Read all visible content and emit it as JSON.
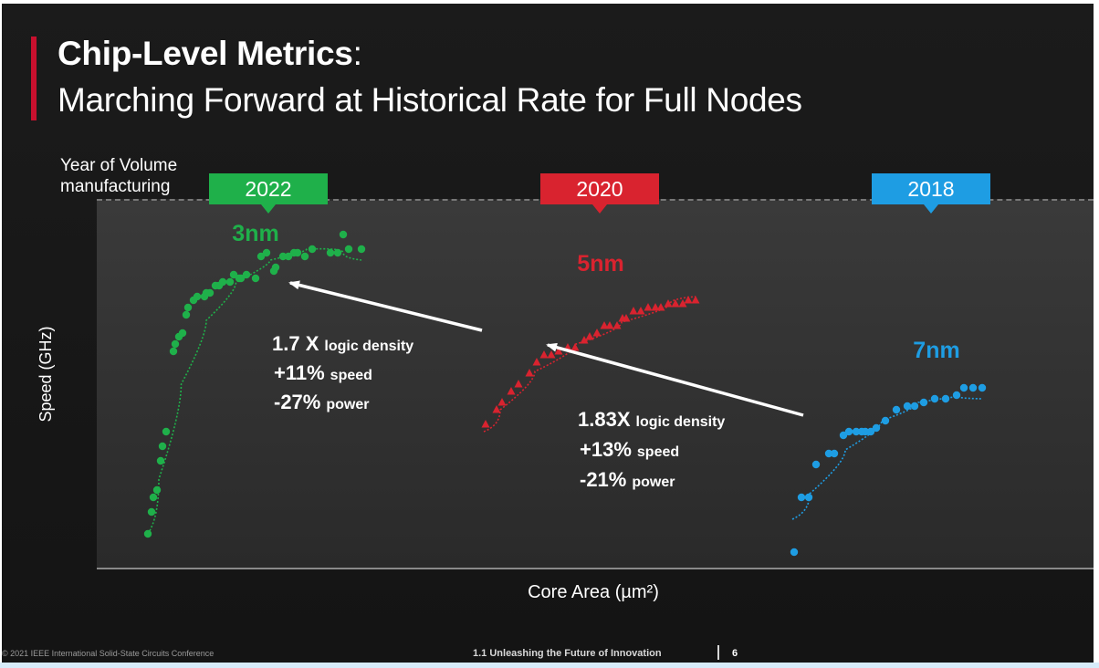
{
  "slide": {
    "title_bold": "Chip-Level Metrics",
    "title_suffix": ":",
    "title_line2": "Marching Forward at Historical Rate for Full Nodes",
    "year_label": "Year of Volume manufacturing",
    "footer_left": "© 2021 IEEE International Solid-State Circuits Conference",
    "footer_center": "1.1 Unleashing the Future of Innovation",
    "footer_page": "6"
  },
  "chart_data": {
    "type": "scatter",
    "title": "",
    "xlabel": "Core Area (µm²)",
    "ylabel": "Speed (GHz)",
    "x_range": [
      0,
      100
    ],
    "y_range": [
      0,
      100
    ],
    "axis_ticks": "none",
    "grid": false,
    "series": [
      {
        "name": "3nm",
        "year": "2022",
        "color": "#1fb04a",
        "marker": "circle",
        "points": [
          [
            0.6,
            10
          ],
          [
            1.0,
            16
          ],
          [
            1.2,
            20
          ],
          [
            1.6,
            22
          ],
          [
            2.0,
            30
          ],
          [
            2.2,
            34
          ],
          [
            2.6,
            38
          ],
          [
            3.4,
            60
          ],
          [
            3.6,
            62
          ],
          [
            4.0,
            64
          ],
          [
            4.4,
            65
          ],
          [
            4.8,
            70
          ],
          [
            5.0,
            72
          ],
          [
            5.6,
            74
          ],
          [
            6.0,
            75
          ],
          [
            6.8,
            75
          ],
          [
            7.0,
            76
          ],
          [
            7.4,
            76
          ],
          [
            8.0,
            78
          ],
          [
            8.4,
            78
          ],
          [
            8.8,
            79
          ],
          [
            9.6,
            79
          ],
          [
            10.0,
            81
          ],
          [
            10.6,
            80
          ],
          [
            10.8,
            80
          ],
          [
            11.4,
            81
          ],
          [
            12.4,
            80
          ],
          [
            13.0,
            86
          ],
          [
            13.6,
            87
          ],
          [
            14.4,
            82
          ],
          [
            14.6,
            83
          ],
          [
            15.4,
            86
          ],
          [
            16.0,
            86
          ],
          [
            16.6,
            87
          ],
          [
            17.0,
            87
          ],
          [
            17.8,
            86
          ],
          [
            18.6,
            88
          ],
          [
            20.6,
            87
          ],
          [
            21.4,
            87
          ],
          [
            22.0,
            92
          ],
          [
            22.6,
            88
          ],
          [
            24.0,
            88
          ]
        ],
        "trend": [
          [
            0.6,
            10
          ],
          [
            3,
            40
          ],
          [
            5.5,
            62
          ],
          [
            8.5,
            75
          ],
          [
            12,
            83
          ],
          [
            16,
            87
          ],
          [
            20,
            89
          ],
          [
            24,
            85
          ]
        ]
      },
      {
        "name": "5nm",
        "year": "2020",
        "color": "#d9232f",
        "marker": "triangle",
        "points": [
          [
            37.6,
            40
          ],
          [
            38.8,
            44
          ],
          [
            39.4,
            46
          ],
          [
            40.4,
            49
          ],
          [
            41.2,
            51
          ],
          [
            42.4,
            54
          ],
          [
            43.2,
            57
          ],
          [
            44.0,
            59
          ],
          [
            44.8,
            59
          ],
          [
            45.6,
            60
          ],
          [
            46.6,
            61
          ],
          [
            47.4,
            61
          ],
          [
            48.4,
            63
          ],
          [
            49.0,
            64
          ],
          [
            49.8,
            65
          ],
          [
            50.6,
            67
          ],
          [
            51.2,
            67
          ],
          [
            52.0,
            67
          ],
          [
            52.6,
            69
          ],
          [
            53.0,
            69
          ],
          [
            53.8,
            71
          ],
          [
            54.6,
            71
          ],
          [
            55.4,
            72
          ],
          [
            56.2,
            72
          ],
          [
            56.8,
            72
          ],
          [
            57.6,
            73
          ],
          [
            58.4,
            73
          ],
          [
            59.2,
            73
          ],
          [
            59.8,
            74
          ],
          [
            60.6,
            74
          ]
        ],
        "trend": [
          [
            37.4,
            38
          ],
          [
            41,
            50
          ],
          [
            45,
            59
          ],
          [
            50,
            65
          ],
          [
            55,
            71
          ],
          [
            60.6,
            75
          ]
        ]
      },
      {
        "name": "7nm",
        "year": "2018",
        "color": "#1e9de3",
        "marker": "circle",
        "points": [
          [
            71.4,
            5
          ],
          [
            72.2,
            20
          ],
          [
            73.0,
            20
          ],
          [
            73.8,
            29
          ],
          [
            75.2,
            32
          ],
          [
            75.8,
            32
          ],
          [
            76.8,
            37
          ],
          [
            77.4,
            38
          ],
          [
            78.2,
            38
          ],
          [
            78.8,
            38
          ],
          [
            79.2,
            38
          ],
          [
            79.8,
            38
          ],
          [
            80.4,
            39
          ],
          [
            81.4,
            41
          ],
          [
            82.6,
            44
          ],
          [
            83.8,
            45
          ],
          [
            84.6,
            45
          ],
          [
            85.6,
            46
          ],
          [
            86.8,
            47
          ],
          [
            88.0,
            47
          ],
          [
            89.2,
            48
          ],
          [
            90.0,
            50
          ],
          [
            91.0,
            50
          ],
          [
            92.0,
            50
          ]
        ],
        "trend": [
          [
            71.2,
            14
          ],
          [
            75,
            28
          ],
          [
            79,
            38
          ],
          [
            83,
            44
          ],
          [
            87,
            48
          ],
          [
            92,
            47
          ]
        ]
      }
    ],
    "annotations": [
      {
        "big": "1.7 X",
        "lines": [
          [
            "",
            "logic density"
          ],
          [
            "+11%",
            "speed"
          ],
          [
            "-27%",
            "power"
          ]
        ],
        "from": "5nm",
        "to": "3nm"
      },
      {
        "big": "1.83X",
        "lines": [
          [
            "",
            "logic density"
          ],
          [
            "+13%",
            "speed"
          ],
          [
            "-21%",
            "power"
          ]
        ],
        "from": "7nm",
        "to": "5nm"
      }
    ]
  }
}
